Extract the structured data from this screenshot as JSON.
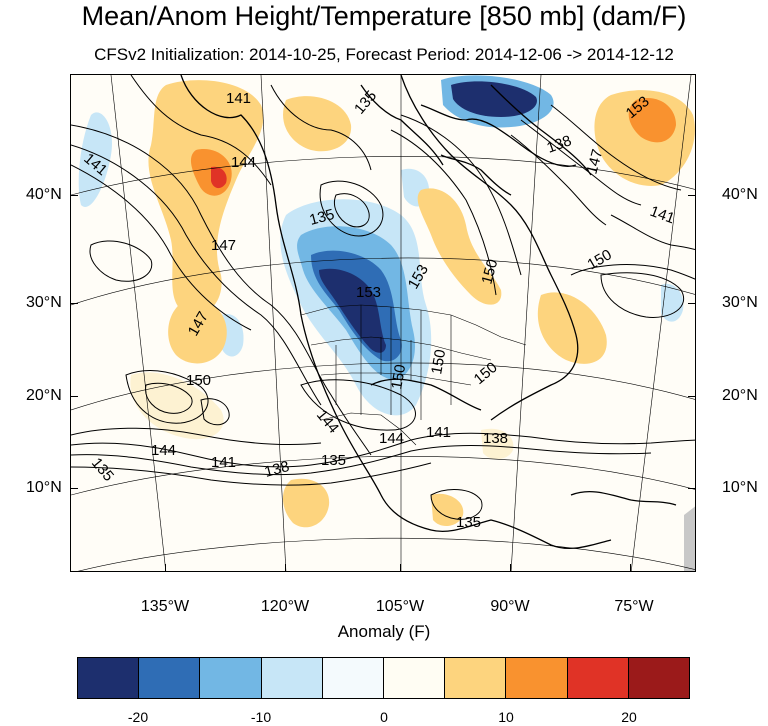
{
  "title": "Mean/Anom Height/Temperature [850 mb] (dam/F)",
  "subtitle": "CFSv2 Initialization: 2014-10-25, Forecast Period: 2014-12-06 -> 2014-12-12",
  "map": {
    "lat_labels_left": [
      "40°N",
      "30°N",
      "20°N",
      "10°N"
    ],
    "lat_labels_right": [
      "40°N",
      "30°N",
      "20°N",
      "10°N"
    ],
    "lon_labels": [
      "135°W",
      "120°W",
      "105°W",
      "90°W",
      "75°W"
    ],
    "contour_labels": [
      "141",
      "135",
      "138",
      "144",
      "141",
      "147",
      "135",
      "153",
      "153",
      "150",
      "150",
      "150",
      "147",
      "150",
      "144",
      "144",
      "141",
      "138",
      "135",
      "135",
      "135",
      "138",
      "141",
      "150",
      "150",
      "153",
      "141",
      "144",
      "147"
    ]
  },
  "colorbar": {
    "title": "Anomaly (F)",
    "colors": [
      "#1d2f6e",
      "#2f6db5",
      "#72b7e4",
      "#c7e6f7",
      "#f4fafd",
      "#fffdf3",
      "#fdd47e",
      "#f9922f",
      "#e03326",
      "#9b1a1a"
    ],
    "tick_labels": [
      "-20",
      "-10",
      "0",
      "10",
      "20"
    ]
  }
}
